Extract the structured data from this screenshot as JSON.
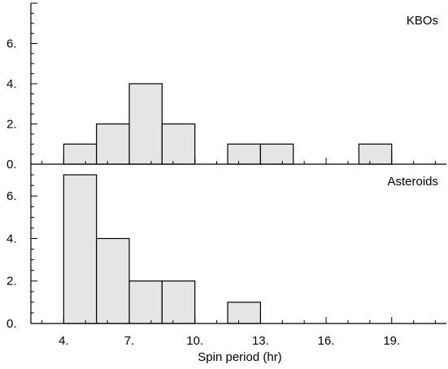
{
  "chart_data": {
    "type": "bar",
    "xlabel": "Spin period (hr)",
    "xlim": [
      2.5,
      21.5
    ],
    "x_ticks": [
      4,
      7,
      10,
      13,
      16,
      19
    ],
    "x_tick_labels": [
      "4.",
      "7.",
      "10.",
      "13.",
      "16.",
      "19."
    ],
    "bin_width": 1.5,
    "bar_fill": "#e5e5e5",
    "bar_stroke": "#000000",
    "panels": [
      {
        "label": "KBOs",
        "ylim": [
          0,
          8
        ],
        "y_ticks": [
          0,
          2,
          4,
          6
        ],
        "y_tick_labels": [
          "0.",
          "2.",
          "4.",
          "6."
        ],
        "bins": [
          {
            "x": 4.0,
            "value": 1
          },
          {
            "x": 5.5,
            "value": 2
          },
          {
            "x": 7.0,
            "value": 4
          },
          {
            "x": 8.5,
            "value": 2
          },
          {
            "x": 11.5,
            "value": 1
          },
          {
            "x": 13.0,
            "value": 1
          },
          {
            "x": 17.5,
            "value": 1
          }
        ]
      },
      {
        "label": "Asteroids",
        "ylim": [
          0,
          7.5
        ],
        "y_ticks": [
          0,
          2,
          4,
          6
        ],
        "y_tick_labels": [
          "0.",
          "2.",
          "4.",
          "6."
        ],
        "bins": [
          {
            "x": 4.0,
            "value": 7
          },
          {
            "x": 5.5,
            "value": 4
          },
          {
            "x": 7.0,
            "value": 2
          },
          {
            "x": 8.5,
            "value": 2
          },
          {
            "x": 11.5,
            "value": 1
          }
        ]
      }
    ]
  }
}
